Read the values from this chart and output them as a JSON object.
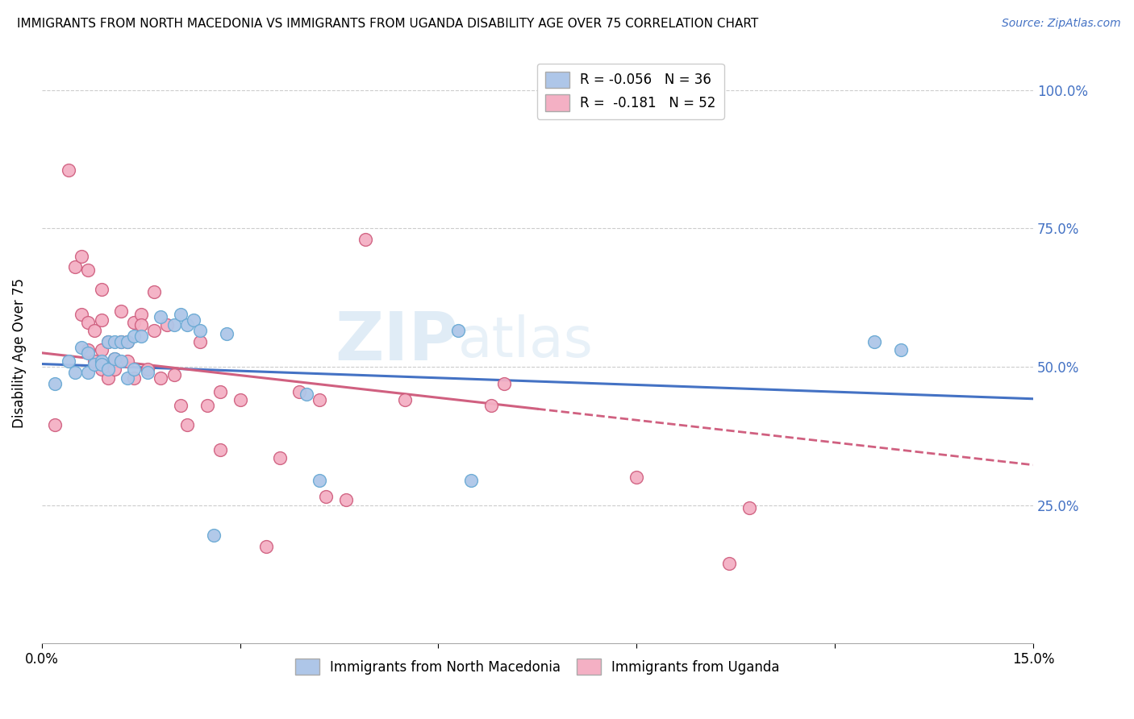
{
  "title": "IMMIGRANTS FROM NORTH MACEDONIA VS IMMIGRANTS FROM UGANDA DISABILITY AGE OVER 75 CORRELATION CHART",
  "source": "Source: ZipAtlas.com",
  "ylabel": "Disability Age Over 75",
  "xlim": [
    0.0,
    0.15
  ],
  "ylim": [
    0.0,
    1.05
  ],
  "xticks": [
    0.0,
    0.03,
    0.06,
    0.09,
    0.12,
    0.15
  ],
  "xtick_labels": [
    "0.0%",
    "",
    "",
    "",
    "",
    "15.0%"
  ],
  "ytick_labels_right": [
    "100.0%",
    "75.0%",
    "50.0%",
    "25.0%"
  ],
  "yticks_right": [
    1.0,
    0.75,
    0.5,
    0.25
  ],
  "watermark_zip": "ZIP",
  "watermark_atlas": "atlas",
  "series1_color": "#aec6e8",
  "series1_edge": "#6aaad4",
  "series2_color": "#f4b0c4",
  "series2_edge": "#d06080",
  "trendline1_color": "#4472c4",
  "trendline2_color": "#d06080",
  "trendline1_intercept": 0.505,
  "trendline1_slope": -0.42,
  "trendline2_intercept": 0.525,
  "trendline2_slope": -1.35,
  "trendline2_solid_end": 0.075,
  "series1_x": [
    0.002,
    0.004,
    0.005,
    0.006,
    0.007,
    0.007,
    0.008,
    0.009,
    0.009,
    0.01,
    0.01,
    0.011,
    0.011,
    0.012,
    0.012,
    0.013,
    0.013,
    0.014,
    0.014,
    0.015,
    0.016,
    0.018,
    0.02,
    0.021,
    0.022,
    0.023,
    0.024,
    0.026,
    0.028,
    0.04,
    0.042,
    0.063,
    0.065,
    0.126,
    0.13
  ],
  "series1_y": [
    0.47,
    0.51,
    0.49,
    0.535,
    0.525,
    0.49,
    0.505,
    0.51,
    0.505,
    0.545,
    0.495,
    0.545,
    0.515,
    0.545,
    0.51,
    0.48,
    0.545,
    0.495,
    0.555,
    0.555,
    0.49,
    0.59,
    0.575,
    0.595,
    0.575,
    0.585,
    0.565,
    0.195,
    0.56,
    0.45,
    0.295,
    0.565,
    0.295,
    0.545,
    0.53
  ],
  "series2_x": [
    0.002,
    0.004,
    0.005,
    0.006,
    0.006,
    0.007,
    0.007,
    0.007,
    0.008,
    0.008,
    0.009,
    0.009,
    0.009,
    0.009,
    0.01,
    0.01,
    0.011,
    0.011,
    0.012,
    0.012,
    0.013,
    0.013,
    0.014,
    0.014,
    0.015,
    0.015,
    0.016,
    0.017,
    0.017,
    0.018,
    0.019,
    0.02,
    0.021,
    0.022,
    0.024,
    0.025,
    0.027,
    0.027,
    0.03,
    0.034,
    0.036,
    0.039,
    0.042,
    0.043,
    0.046,
    0.049,
    0.055,
    0.068,
    0.07,
    0.09,
    0.104,
    0.107
  ],
  "series2_y": [
    0.395,
    0.855,
    0.68,
    0.7,
    0.595,
    0.675,
    0.53,
    0.58,
    0.51,
    0.565,
    0.495,
    0.53,
    0.585,
    0.64,
    0.48,
    0.545,
    0.515,
    0.495,
    0.545,
    0.6,
    0.545,
    0.51,
    0.58,
    0.48,
    0.595,
    0.575,
    0.495,
    0.565,
    0.635,
    0.48,
    0.575,
    0.485,
    0.43,
    0.395,
    0.545,
    0.43,
    0.455,
    0.35,
    0.44,
    0.175,
    0.335,
    0.455,
    0.44,
    0.265,
    0.26,
    0.73,
    0.44,
    0.43,
    0.47,
    0.3,
    0.145,
    0.245
  ]
}
